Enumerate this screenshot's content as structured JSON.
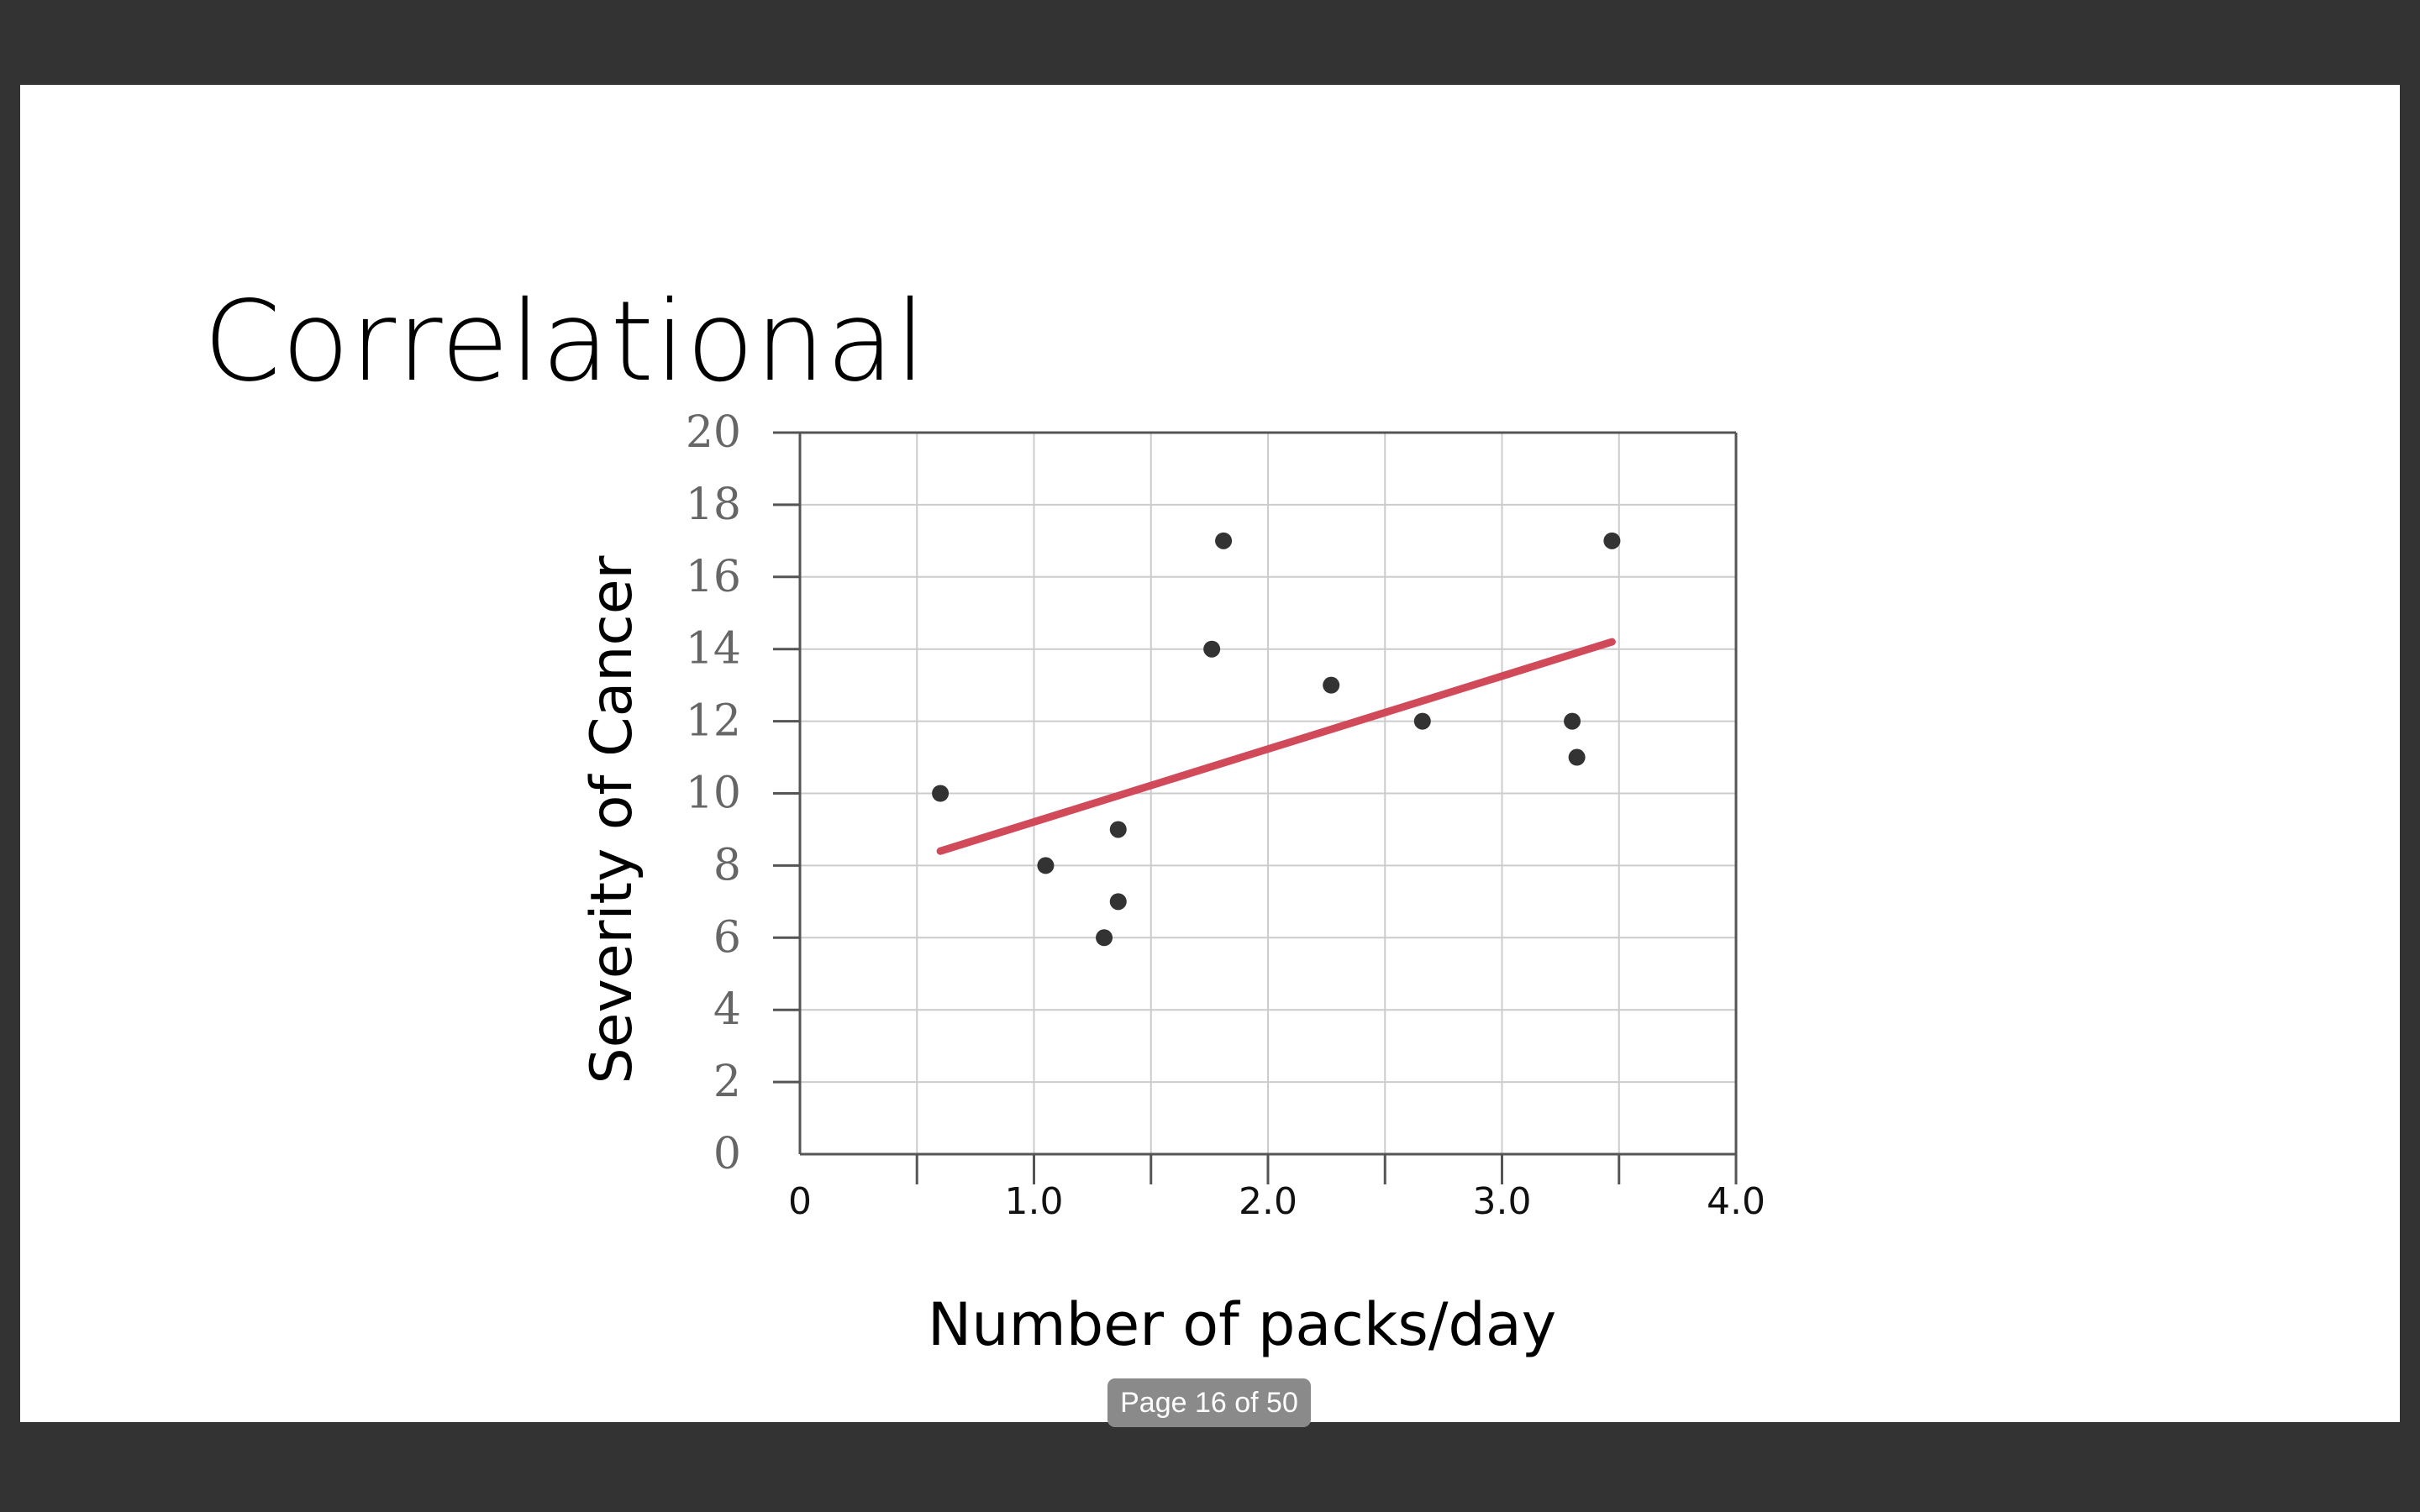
{
  "slide": {
    "title": "Correlational"
  },
  "viewer": {
    "page_indicator": "Page 16 of 50"
  },
  "colors": {
    "background": "#333333",
    "slide": "#ffffff",
    "points": "#333333",
    "trendline": "#d14a5a",
    "grid": "#cccccc",
    "axis": "#555555"
  },
  "chart_data": {
    "type": "scatter",
    "title": "",
    "xlabel": "Number of packs/day",
    "ylabel": "Severity of Cancer",
    "xlim": [
      0,
      4.0
    ],
    "ylim": [
      0,
      20
    ],
    "x_ticks": [
      "0",
      "1.0",
      "2.0",
      "3.0",
      "4.0"
    ],
    "y_ticks": [
      "0",
      "2",
      "4",
      "6",
      "8",
      "10",
      "12",
      "14",
      "16",
      "18",
      "20"
    ],
    "grid": true,
    "points": [
      {
        "x": 0.6,
        "y": 10
      },
      {
        "x": 1.05,
        "y": 8
      },
      {
        "x": 1.3,
        "y": 6
      },
      {
        "x": 1.36,
        "y": 9
      },
      {
        "x": 1.36,
        "y": 7
      },
      {
        "x": 1.76,
        "y": 14
      },
      {
        "x": 1.81,
        "y": 17
      },
      {
        "x": 2.27,
        "y": 13
      },
      {
        "x": 2.66,
        "y": 12
      },
      {
        "x": 3.3,
        "y": 12
      },
      {
        "x": 3.32,
        "y": 11
      },
      {
        "x": 3.47,
        "y": 17
      }
    ],
    "trendline": {
      "x1": 0.6,
      "y1": 8.4,
      "x2": 3.47,
      "y2": 14.2
    }
  }
}
